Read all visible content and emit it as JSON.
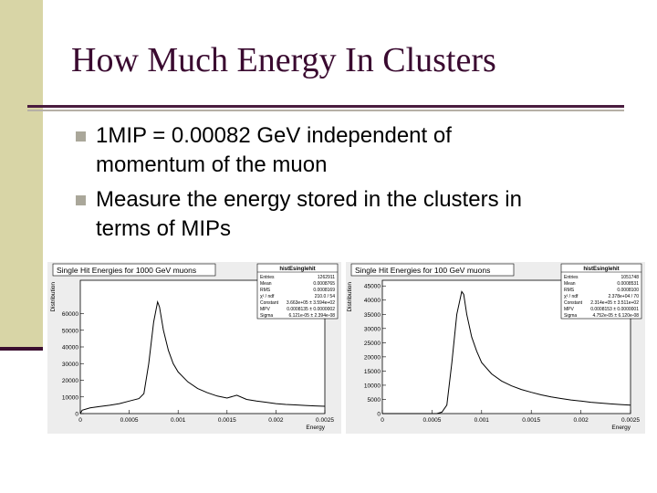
{
  "slide": {
    "title": "How Much Energy In Clusters",
    "bullets": [
      {
        "line1": "1MIP = 0.00082 GeV independent of",
        "line2": "momentum of the muon"
      },
      {
        "line1": "Measure the energy stored in the clusters in",
        "line2": "terms of MIPs"
      }
    ]
  },
  "chart_data": [
    {
      "type": "histogram",
      "title": "Single Hit Energies for 1000 GeV muons",
      "xlabel": "Energy",
      "ylabel": "Distribution",
      "xlim": [
        0,
        0.0025
      ],
      "ylim": [
        0,
        80000
      ],
      "xticks": [
        "0",
        "0.0005",
        "0.001",
        "0.0015",
        "0.002",
        "0.0025"
      ],
      "yticks": [
        "0",
        "10000",
        "20000",
        "30000",
        "40000",
        "50000",
        "60000"
      ],
      "stats": {
        "title": "histEsinglehit",
        "rows": [
          [
            "Entries",
            "1262911"
          ],
          [
            "Mean",
            "0.0008765"
          ],
          [
            "RMS",
            "0.0008169"
          ],
          [
            "χ² / ndf",
            "210.0 / 54"
          ],
          [
            "Constant",
            "3.663e+05 ± 3.594e+02"
          ],
          [
            "MPV",
            "0.0008135 ± 0.0000002"
          ],
          [
            "Sigma",
            "6.121e-05 ± 2.394e-08"
          ]
        ]
      },
      "points": [
        [
          0,
          0
        ],
        [
          2e-05,
          2000
        ],
        [
          0.0001,
          3400
        ],
        [
          0.0002,
          4200
        ],
        [
          0.0003,
          5000
        ],
        [
          0.0004,
          6000
        ],
        [
          0.0005,
          7500
        ],
        [
          0.0006,
          9000
        ],
        [
          0.00065,
          12000
        ],
        [
          0.0007,
          30000
        ],
        [
          0.00075,
          55000
        ],
        [
          0.00079,
          67000
        ],
        [
          0.00081,
          64000
        ],
        [
          0.00085,
          50000
        ],
        [
          0.0009,
          38000
        ],
        [
          0.00095,
          30000
        ],
        [
          0.001,
          25000
        ],
        [
          0.0011,
          19000
        ],
        [
          0.0012,
          15000
        ],
        [
          0.0013,
          12500
        ],
        [
          0.0014,
          10500
        ],
        [
          0.0015,
          9300
        ],
        [
          0.0016,
          11000
        ],
        [
          0.0017,
          8500
        ],
        [
          0.0018,
          7500
        ],
        [
          0.0019,
          6800
        ],
        [
          0.002,
          6000
        ],
        [
          0.0021,
          5500
        ],
        [
          0.0022,
          5200
        ],
        [
          0.0023,
          4900
        ],
        [
          0.0024,
          4600
        ],
        [
          0.0025,
          4400
        ]
      ]
    },
    {
      "type": "histogram",
      "title": "Single Hit Energies for 100 GeV muons",
      "xlabel": "Energy",
      "ylabel": "Distribution",
      "xlim": [
        0,
        0.0025
      ],
      "ylim": [
        0,
        47000
      ],
      "xticks": [
        "0",
        "0.0005",
        "0.001",
        "0.0015",
        "0.002",
        "0.0025"
      ],
      "yticks": [
        "0",
        "5000",
        "10000",
        "15000",
        "20000",
        "25000",
        "30000",
        "35000",
        "40000",
        "45000"
      ],
      "stats": {
        "title": "histEsinglehit",
        "rows": [
          [
            "Entries",
            "1051748"
          ],
          [
            "Mean",
            "0.0008531"
          ],
          [
            "RMS",
            "0.0008100"
          ],
          [
            "χ² / ndf",
            "2.378e+04 / 70"
          ],
          [
            "Constant",
            "2.314e+05 ± 3.511e+02"
          ],
          [
            "MPV",
            "0.0008153 ± 0.0000001"
          ],
          [
            "Sigma",
            "4.752e-05 ± 6.120e-08"
          ]
        ]
      },
      "points": [
        [
          0,
          0
        ],
        [
          0.0003,
          0
        ],
        [
          0.00055,
          0
        ],
        [
          0.0006,
          500
        ],
        [
          0.00065,
          3000
        ],
        [
          0.0007,
          18000
        ],
        [
          0.00075,
          35000
        ],
        [
          0.0008,
          43000
        ],
        [
          0.00082,
          42000
        ],
        [
          0.00085,
          35000
        ],
        [
          0.0009,
          27000
        ],
        [
          0.00095,
          22000
        ],
        [
          0.001,
          18000
        ],
        [
          0.0011,
          14000
        ],
        [
          0.0012,
          11500
        ],
        [
          0.0013,
          9800
        ],
        [
          0.0014,
          8500
        ],
        [
          0.0015,
          7500
        ],
        [
          0.0016,
          6600
        ],
        [
          0.0017,
          5900
        ],
        [
          0.0018,
          5300
        ],
        [
          0.0019,
          4800
        ],
        [
          0.002,
          4400
        ],
        [
          0.0021,
          4000
        ],
        [
          0.0022,
          3700
        ],
        [
          0.0023,
          3400
        ],
        [
          0.0024,
          3200
        ],
        [
          0.0025,
          3000
        ]
      ]
    }
  ]
}
